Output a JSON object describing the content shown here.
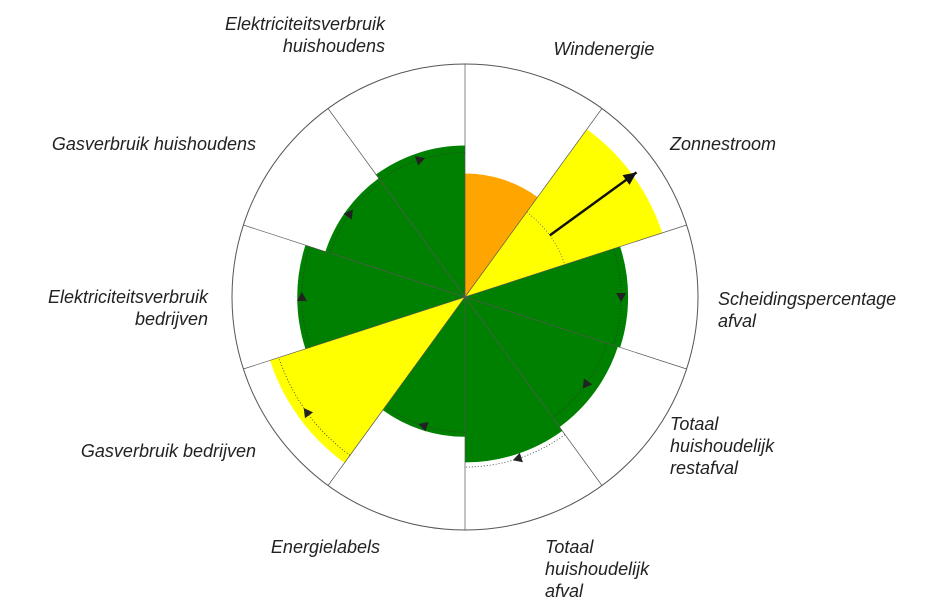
{
  "chart_data": {
    "type": "rose",
    "categories": [
      [
        "Windenergie"
      ],
      [
        "Zonnestroom"
      ],
      [
        "Scheidingspercentage",
        "afval"
      ],
      [
        "Totaal",
        "huishoudelijk",
        "restafval"
      ],
      [
        "Totaal",
        "huishoudelijk",
        "afval"
      ],
      [
        "Energielabels"
      ],
      [
        "Gasverbruik bedrijven"
      ],
      [
        "Elektriciteitsverbruik",
        "bedrijven"
      ],
      [
        "Gasverbruik huishoudens"
      ],
      [
        "Elektriciteitsverbruik",
        "huishoudens"
      ]
    ],
    "values": [
      53,
      89,
      70,
      69,
      71,
      60,
      88,
      72,
      63,
      65
    ],
    "colors": [
      "#ffa500",
      "#ffff00",
      "#008000",
      "#008000",
      "#008000",
      "#008000",
      "#ffff00",
      "#008000",
      "#008000",
      "#008000"
    ],
    "targets": [
      null,
      91,
      67,
      64,
      73,
      58,
      84,
      70,
      61,
      62
    ],
    "starts": [
      null,
      45,
      null,
      null,
      null,
      null,
      null,
      null,
      null,
      null
    ],
    "rlim": [
      0,
      100
    ]
  }
}
